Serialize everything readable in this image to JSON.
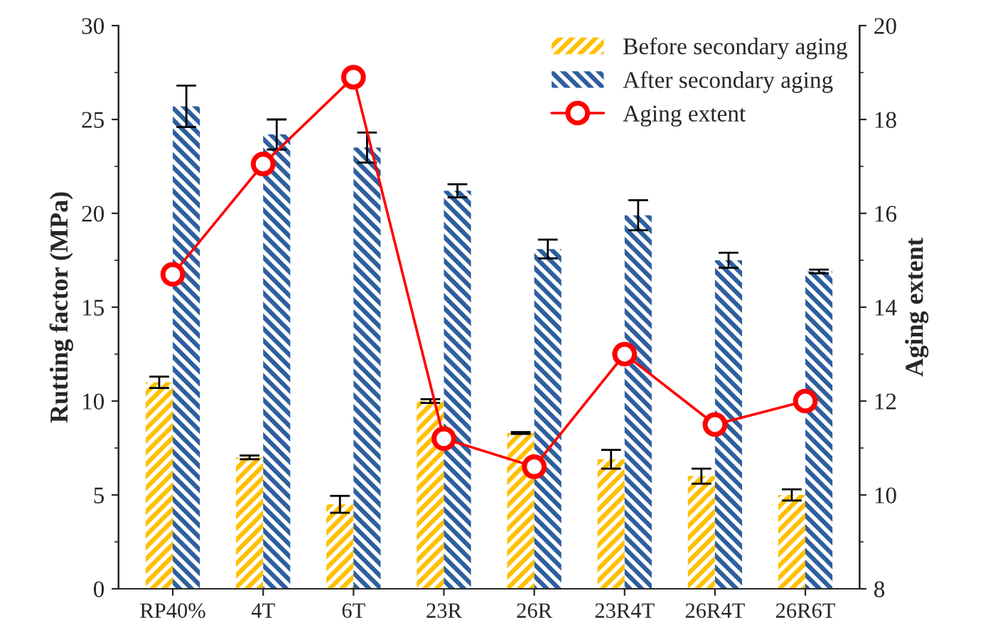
{
  "chart_data": {
    "type": "bar",
    "ylabel": "Rutting factor (MPa)",
    "y2label": "Aging extent",
    "categories": [
      "RP40%",
      "4T",
      "6T",
      "23R",
      "26R",
      "23R4T",
      "26R4T",
      "26R6T"
    ],
    "series": [
      {
        "name": "Before secondary aging",
        "color": "#ffc000",
        "values": [
          11.0,
          7.0,
          4.5,
          10.0,
          8.3,
          6.9,
          6.0,
          5.0
        ],
        "errors": [
          0.3,
          0.1,
          0.45,
          0.1,
          0.05,
          0.5,
          0.4,
          0.3
        ]
      },
      {
        "name": "After secondary aging",
        "color": "#2e5f9e",
        "values": [
          25.7,
          24.2,
          23.5,
          21.2,
          18.1,
          19.9,
          17.5,
          16.9
        ],
        "errors": [
          1.1,
          0.8,
          0.8,
          0.35,
          0.5,
          0.8,
          0.4,
          0.1
        ]
      },
      {
        "name": "Aging extent",
        "type": "line",
        "axis": "y2",
        "color": "#ff0000",
        "marker": "circle",
        "values": [
          14.7,
          17.05,
          18.9,
          11.2,
          10.6,
          13.0,
          11.5,
          12.0
        ]
      }
    ],
    "ylim": [
      0,
      30
    ],
    "yticks": [
      0,
      5,
      10,
      15,
      20,
      25,
      30
    ],
    "y2lim": [
      8,
      20
    ],
    "y2ticks": [
      8,
      10,
      12,
      14,
      16,
      18,
      20
    ],
    "grid": false,
    "legend": "top right"
  }
}
